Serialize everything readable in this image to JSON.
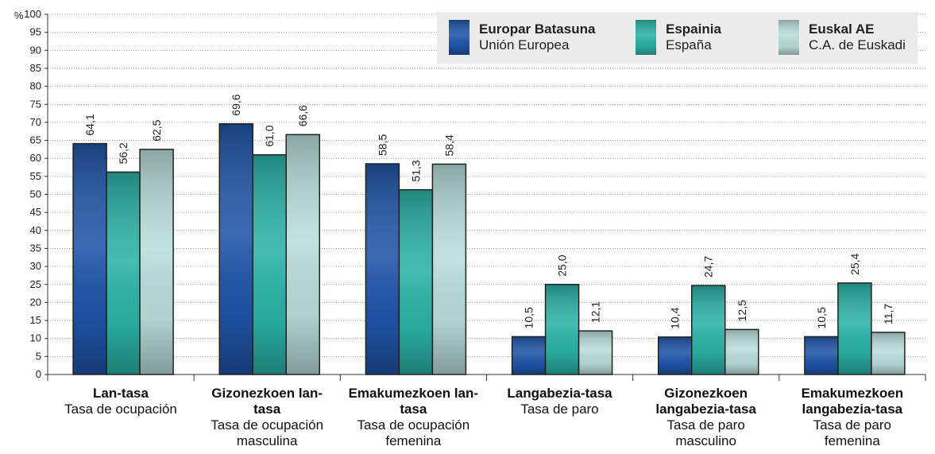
{
  "chart_data": {
    "type": "bar",
    "y_unit": "%",
    "categories": [
      {
        "name": "Lan-tasa",
        "subtitle": "Tasa de ocupación"
      },
      {
        "name": "Gizonezkoen lan-tasa",
        "subtitle": "Tasa de ocupación masculina"
      },
      {
        "name": "Emakumezkoen lan-tasa",
        "subtitle": "Tasa de ocupación femenina"
      },
      {
        "name": "Langabezia-tasa",
        "subtitle": "Tasa de paro"
      },
      {
        "name": "Gizonezkoen langabezia-tasa",
        "subtitle": "Tasa de paro masculino"
      },
      {
        "name": "Emakumezkoen langabezia-tasa",
        "subtitle": "Tasa de paro femenina"
      }
    ],
    "series": [
      {
        "name": "Europar Batasuna",
        "subtitle": "Unión Europea",
        "color": "#1f55a8",
        "values": [
          64.1,
          69.6,
          58.5,
          10.5,
          10.4,
          10.5
        ],
        "value_labels": [
          "64,1",
          "69,6",
          "58,5",
          "10,5",
          "10,4",
          "10,5"
        ]
      },
      {
        "name": "Espainia",
        "subtitle": "España",
        "color": "#2ab3a6",
        "values": [
          56.2,
          61.0,
          51.3,
          25.0,
          24.7,
          25.4
        ],
        "value_labels": [
          "56,2",
          "61,0",
          "51,3",
          "25,0",
          "24,7",
          "25,4"
        ]
      },
      {
        "name": "Euskal AE",
        "subtitle": "C.A. de Euskadi",
        "color": "#b9dedb",
        "values": [
          62.5,
          66.6,
          58.4,
          12.1,
          12.5,
          11.7
        ],
        "value_labels": [
          "62,5",
          "66,6",
          "58,4",
          "12,1",
          "12,5",
          "11,7"
        ]
      }
    ],
    "ylim": [
      0,
      100
    ],
    "yticks": [
      0,
      5,
      10,
      15,
      20,
      25,
      30,
      35,
      40,
      45,
      50,
      55,
      60,
      65,
      70,
      75,
      80,
      85,
      90,
      95,
      100
    ],
    "grid": true,
    "legend": "upper right"
  }
}
